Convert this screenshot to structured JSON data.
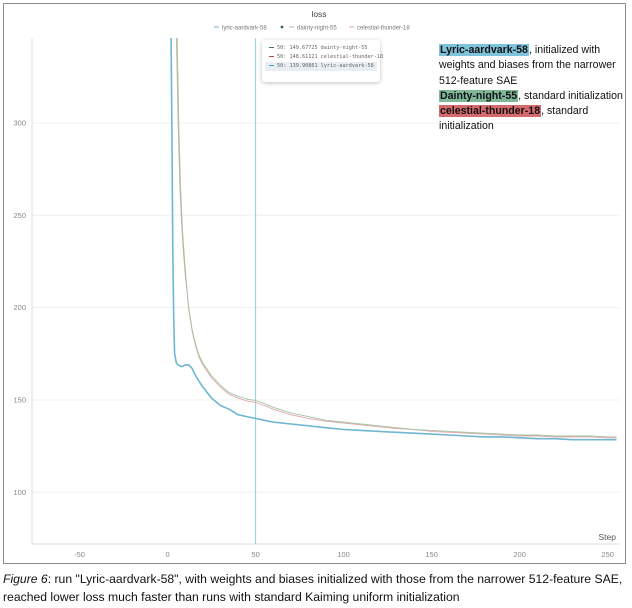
{
  "chart_data": {
    "type": "line",
    "title": "loss",
    "xlabel": "Step",
    "ylabel": "",
    "xlim": [
      -77,
      257
    ],
    "ylim": [
      72,
      346
    ],
    "x_ticks": [
      -50,
      0,
      50,
      100,
      150,
      200,
      250
    ],
    "y_ticks": [
      100,
      150,
      200,
      250,
      300
    ],
    "grid": true,
    "legend_position": "top",
    "hover_step": 50,
    "series": [
      {
        "name": "lyric-aardvark-58",
        "color": "#6fb6d3",
        "x": [
          2,
          2.5,
          3,
          3.5,
          4,
          5,
          6,
          8,
          10,
          12,
          14,
          16,
          18,
          20,
          25,
          30,
          35,
          40,
          45,
          50,
          55,
          60,
          70,
          80,
          90,
          100,
          110,
          120,
          130,
          140,
          150,
          160,
          170,
          180,
          190,
          200,
          210,
          220,
          230,
          240,
          250,
          255
        ],
        "y": [
          346,
          290,
          230,
          195,
          175,
          170,
          169,
          168,
          169,
          169,
          167,
          163,
          160,
          157,
          151,
          147,
          145,
          142,
          141,
          140,
          139,
          138,
          137,
          136,
          135,
          134,
          133.5,
          133,
          132.5,
          132,
          131.5,
          131,
          130.5,
          130,
          130,
          129.5,
          129,
          129,
          128.5,
          128.5,
          128.5,
          128.5
        ]
      },
      {
        "name": "dainty-night-55",
        "color": "#9fc6a4",
        "x": [
          5,
          6,
          7,
          8,
          9,
          10,
          12,
          14,
          16,
          18,
          20,
          25,
          30,
          35,
          40,
          45,
          50,
          55,
          60,
          70,
          80,
          90,
          100,
          110,
          120,
          130,
          140,
          150,
          160,
          170,
          180,
          190,
          200,
          210,
          220,
          230,
          240,
          250,
          255
        ],
        "y": [
          346,
          300,
          265,
          245,
          230,
          218,
          200,
          188,
          180,
          174,
          170,
          163,
          158,
          154,
          152,
          150.5,
          149.7,
          148,
          146,
          143,
          141,
          139,
          138,
          137,
          136,
          135,
          134,
          133.5,
          133,
          132.5,
          132,
          131.5,
          131,
          131,
          130.5,
          130.5,
          130.5,
          130,
          130
        ]
      },
      {
        "name": "celestial-thunder-18",
        "color": "#e5a5a8",
        "x": [
          5.5,
          6.5,
          7.5,
          8.5,
          9.5,
          10.5,
          12,
          14,
          16,
          18,
          20,
          25,
          30,
          35,
          40,
          45,
          50,
          55,
          60,
          70,
          80,
          90,
          100,
          110,
          120,
          130,
          140,
          150,
          160,
          170,
          180,
          190,
          200,
          210,
          220,
          230,
          240,
          250,
          255
        ],
        "y": [
          346,
          295,
          262,
          242,
          228,
          216,
          199,
          187,
          179,
          173,
          169,
          162,
          157,
          153,
          151,
          149.5,
          148.6,
          147,
          145,
          142,
          140,
          138.5,
          137.5,
          136.5,
          135.5,
          134.5,
          134,
          133,
          132.5,
          132,
          131.5,
          131,
          130.5,
          130.5,
          130,
          130,
          130,
          129.5,
          129.5
        ]
      }
    ]
  },
  "legend": [
    {
      "label": "lyric-aardvark-58",
      "color": "#6fb6d3"
    },
    {
      "label": "dainty-night-55",
      "color": "#9fc6a4"
    },
    {
      "label": "celestial-thunder-18",
      "color": "#e5a5a8"
    }
  ],
  "tooltip": {
    "rows": [
      {
        "step": "50",
        "value": "149.67725",
        "name": "dainty-night-55",
        "color": "#3b7d46"
      },
      {
        "step": "50",
        "value": "148.61121",
        "name": "celestial-thunder-18",
        "color": "#b5474c"
      },
      {
        "step": "50",
        "value": "139.90861",
        "name": "lyric-aardvark-58",
        "color": "#4d9bbd"
      }
    ]
  },
  "notes": [
    {
      "name": "Lyric-aardvark-58",
      "text": ", initialized with weights and biases from the narrower 512-feature SAE",
      "bg": "#7ec3dc"
    },
    {
      "name": "Dainty-night-55",
      "text": ", standard initialization",
      "bg": "#7fb79a"
    },
    {
      "name": "celestial-thunder-18",
      "text": ", standard initialization",
      "bg": "#d56a6e"
    }
  ],
  "caption": {
    "label": "Figure 6",
    "text": ": run \"Lyric-aardvark-58\", with weights and biases initialized with those from the narrower 512-feature SAE, reached lower loss much faster than runs with standard Kaiming uniform initialization"
  }
}
